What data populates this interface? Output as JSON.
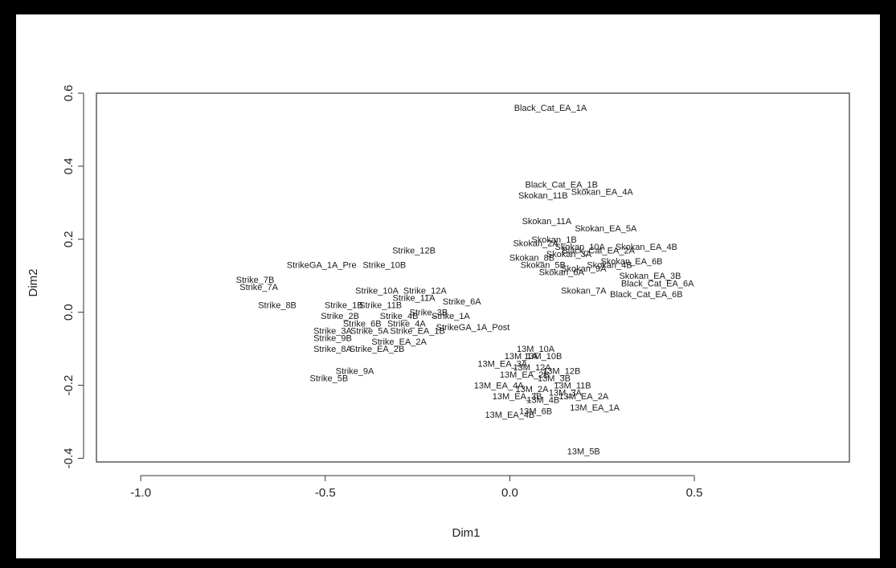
{
  "chart_data": {
    "type": "scatter",
    "title": "",
    "xlabel": "Dim1",
    "ylabel": "Dim2",
    "xlim": [
      -1.12,
      0.92
    ],
    "ylim": [
      -0.41,
      0.6
    ],
    "xticks": [
      "-1.0",
      "-0.5",
      "0.0",
      "0.5"
    ],
    "xtick_values": [
      -1.0,
      -0.5,
      0.0,
      0.5
    ],
    "yticks": [
      "-0.4",
      "-0.2",
      "0.0",
      "0.2",
      "0.4",
      "0.6"
    ],
    "ytick_values": [
      -0.4,
      -0.2,
      0.0,
      0.2,
      0.4,
      0.6
    ],
    "grid": false,
    "legend": "none",
    "points": [
      {
        "label": "Black_Cat_EA_1A",
        "x": 0.11,
        "y": 0.56
      },
      {
        "label": "Black_Cat_EA_1B",
        "x": 0.14,
        "y": 0.35
      },
      {
        "label": "Skokan_11B",
        "x": 0.09,
        "y": 0.32
      },
      {
        "label": "Skokan_EA_4A",
        "x": 0.25,
        "y": 0.33
      },
      {
        "label": "Skokan_11A",
        "x": 0.1,
        "y": 0.25
      },
      {
        "label": "Skokan_EA_5A",
        "x": 0.26,
        "y": 0.23
      },
      {
        "label": "Skokan_EA_4B",
        "x": 0.37,
        "y": 0.18
      },
      {
        "label": "Skokan_EA_6B",
        "x": 0.33,
        "y": 0.14
      },
      {
        "label": "Skokan_EA_3B",
        "x": 0.38,
        "y": 0.1
      },
      {
        "label": "Black_Cat_EA_6A",
        "x": 0.4,
        "y": 0.08
      },
      {
        "label": "Skokan_7A",
        "x": 0.2,
        "y": 0.06
      },
      {
        "label": "Black_Cat_EA_6B",
        "x": 0.37,
        "y": 0.05
      },
      {
        "label": "Skokan_2A",
        "x": 0.07,
        "y": 0.19
      },
      {
        "label": "Skokan_3A",
        "x": 0.16,
        "y": 0.16
      },
      {
        "label": "Skokan_5B",
        "x": 0.09,
        "y": 0.13
      },
      {
        "label": "Skokan_9A",
        "x": 0.2,
        "y": 0.12
      },
      {
        "label": "Skokan_1B",
        "x": 0.12,
        "y": 0.2
      },
      {
        "label": "Black_Cat_EA_2A",
        "x": 0.24,
        "y": 0.17
      },
      {
        "label": "Skokan_6A",
        "x": 0.14,
        "y": 0.11
      },
      {
        "label": "Skokan_8B",
        "x": 0.06,
        "y": 0.15
      },
      {
        "label": "Skokan_4B",
        "x": 0.27,
        "y": 0.13
      },
      {
        "label": "Skokan_10A",
        "x": 0.19,
        "y": 0.18
      },
      {
        "label": "Strike_12B",
        "x": -0.26,
        "y": 0.17
      },
      {
        "label": "StrikeGA_1A_Pre",
        "x": -0.51,
        "y": 0.13
      },
      {
        "label": "Strike_10B",
        "x": -0.34,
        "y": 0.13
      },
      {
        "label": "Strike_7B",
        "x": -0.69,
        "y": 0.09
      },
      {
        "label": "Strike_7A",
        "x": -0.68,
        "y": 0.07
      },
      {
        "label": "Strike_8B",
        "x": -0.63,
        "y": 0.02
      },
      {
        "label": "Strike_10A",
        "x": -0.36,
        "y": 0.06
      },
      {
        "label": "Strike_12A",
        "x": -0.23,
        "y": 0.06
      },
      {
        "label": "Strike_11A",
        "x": -0.26,
        "y": 0.04
      },
      {
        "label": "Strike_6A",
        "x": -0.13,
        "y": 0.03
      },
      {
        "label": "Strike_1B",
        "x": -0.45,
        "y": 0.02
      },
      {
        "label": "Strike_11B",
        "x": -0.35,
        "y": 0.02
      },
      {
        "label": "Strike_3B",
        "x": -0.22,
        "y": 0.0
      },
      {
        "label": "Strike_2B",
        "x": -0.46,
        "y": -0.01
      },
      {
        "label": "Strike_4B",
        "x": -0.3,
        "y": -0.01
      },
      {
        "label": "Strike_1A",
        "x": -0.16,
        "y": -0.01
      },
      {
        "label": "Strike_6B",
        "x": -0.4,
        "y": -0.03
      },
      {
        "label": "Strike_4A",
        "x": -0.28,
        "y": -0.03
      },
      {
        "label": "StrikeGA_1A_Post",
        "x": -0.1,
        "y": -0.04
      },
      {
        "label": "Strike_3A",
        "x": -0.48,
        "y": -0.05
      },
      {
        "label": "Strike_5A",
        "x": -0.38,
        "y": -0.05
      },
      {
        "label": "Strike_EA_1B",
        "x": -0.25,
        "y": -0.05
      },
      {
        "label": "Strike_9B",
        "x": -0.48,
        "y": -0.07
      },
      {
        "label": "Strike_EA_2A",
        "x": -0.3,
        "y": -0.08
      },
      {
        "label": "Strike_8A",
        "x": -0.48,
        "y": -0.1
      },
      {
        "label": "Strike_EA_2B",
        "x": -0.36,
        "y": -0.1
      },
      {
        "label": "Strike_9A",
        "x": -0.42,
        "y": -0.16
      },
      {
        "label": "Strike_5B",
        "x": -0.49,
        "y": -0.18
      },
      {
        "label": "13M_10A",
        "x": 0.07,
        "y": -0.1
      },
      {
        "label": "13M_1A",
        "x": 0.03,
        "y": -0.12
      },
      {
        "label": "13M_10B",
        "x": 0.09,
        "y": -0.12
      },
      {
        "label": "13M_EA_3A",
        "x": -0.02,
        "y": -0.14
      },
      {
        "label": "13M_12A",
        "x": 0.06,
        "y": -0.15
      },
      {
        "label": "13M_12B",
        "x": 0.14,
        "y": -0.16
      },
      {
        "label": "13M_EA_2B",
        "x": 0.04,
        "y": -0.17
      },
      {
        "label": "13M_3B",
        "x": 0.12,
        "y": -0.18
      },
      {
        "label": "13M_EA_4A",
        "x": -0.03,
        "y": -0.2
      },
      {
        "label": "13M_11B",
        "x": 0.17,
        "y": -0.2
      },
      {
        "label": "13M_2A",
        "x": 0.06,
        "y": -0.21
      },
      {
        "label": "13M_3A",
        "x": 0.15,
        "y": -0.22
      },
      {
        "label": "13M_EA_3B",
        "x": 0.02,
        "y": -0.23
      },
      {
        "label": "13M_EA_2A",
        "x": 0.2,
        "y": -0.23
      },
      {
        "label": "13M_4B",
        "x": 0.09,
        "y": -0.24
      },
      {
        "label": "13M_EA_1A",
        "x": 0.23,
        "y": -0.26
      },
      {
        "label": "13M_EA_4B",
        "x": 0.0,
        "y": -0.28
      },
      {
        "label": "13M_6B",
        "x": 0.07,
        "y": -0.27
      },
      {
        "label": "13M_5B",
        "x": 0.2,
        "y": -0.38
      }
    ]
  }
}
